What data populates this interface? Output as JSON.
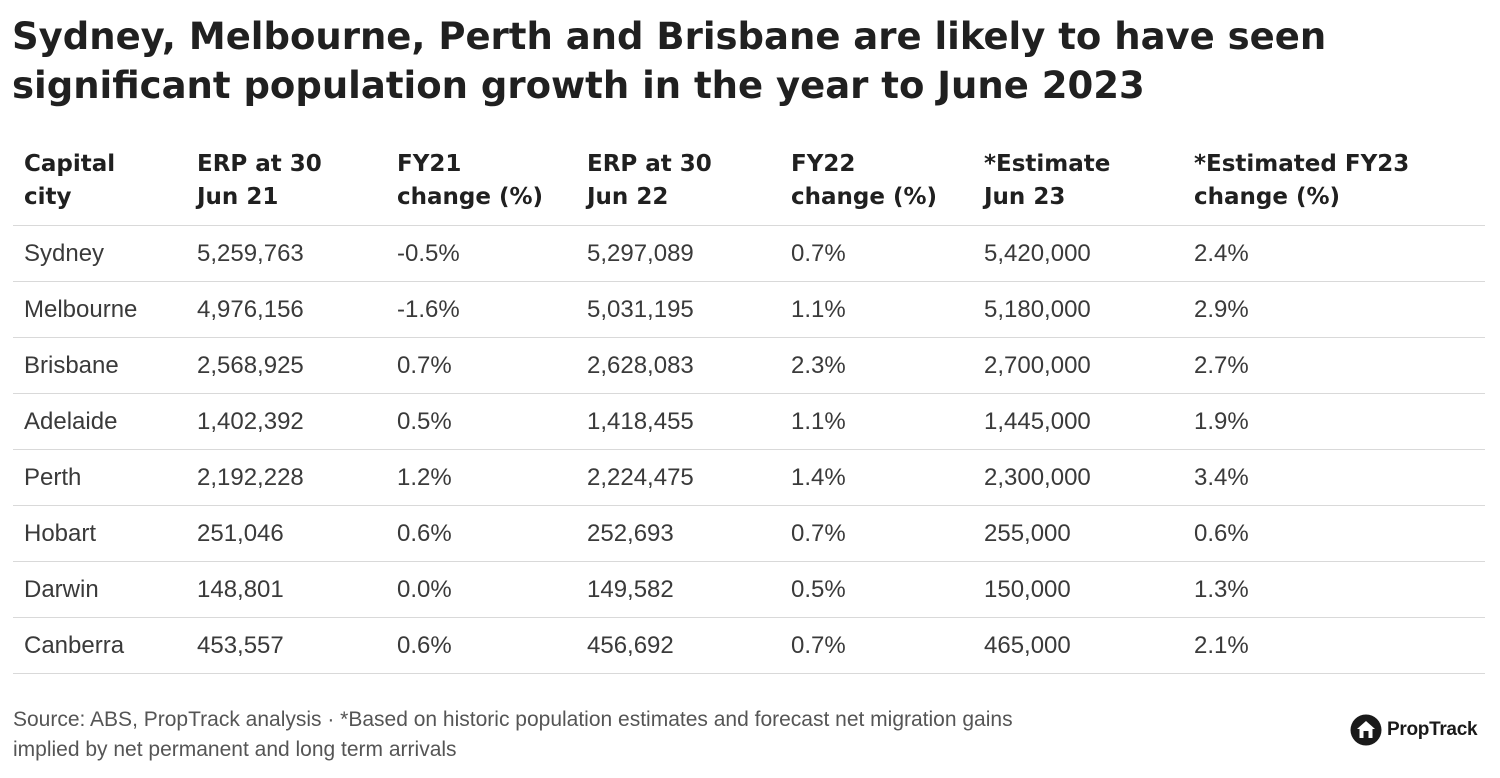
{
  "title_lines": [
    "Sydney, Melbourne, Perth and Brisbane are likely to have seen",
    "significant population growth in the year to June 2023"
  ],
  "chart_data": {
    "type": "table",
    "title": "Sydney, Melbourne, Perth and Brisbane are likely to have seen significant population growth in the year to June 2023",
    "columns": [
      [
        "Capital",
        "city"
      ],
      [
        "ERP at 30",
        "Jun 21"
      ],
      [
        "FY21",
        "change (%)"
      ],
      [
        "ERP at 30",
        "Jun 22"
      ],
      [
        "FY22",
        "change (%)"
      ],
      [
        "*Estimate",
        "Jun 23"
      ],
      [
        "*Estimated FY23",
        "change (%)"
      ]
    ],
    "rows": [
      [
        "Sydney",
        "5,259,763",
        "-0.5%",
        "5,297,089",
        "0.7%",
        "5,420,000",
        "2.4%"
      ],
      [
        "Melbourne",
        "4,976,156",
        "-1.6%",
        "5,031,195",
        "1.1%",
        "5,180,000",
        "2.9%"
      ],
      [
        "Brisbane",
        "2,568,925",
        "0.7%",
        "2,628,083",
        "2.3%",
        "2,700,000",
        "2.7%"
      ],
      [
        "Adelaide",
        "1,402,392",
        "0.5%",
        "1,418,455",
        "1.1%",
        "1,445,000",
        "1.9%"
      ],
      [
        "Perth",
        "2,192,228",
        "1.2%",
        "2,224,475",
        "1.4%",
        "2,300,000",
        "3.4%"
      ],
      [
        "Hobart",
        "251,046",
        "0.6%",
        "252,693",
        "0.7%",
        "255,000",
        "0.6%"
      ],
      [
        "Darwin",
        "148,801",
        "0.0%",
        "149,582",
        "0.5%",
        "150,000",
        "1.3%"
      ],
      [
        "Canberra",
        "453,557",
        "0.6%",
        "456,692",
        "0.7%",
        "465,000",
        "2.1%"
      ]
    ]
  },
  "source_lines": [
    "Source: ABS, PropTrack analysis · *Based on historic population estimates and forecast net migration gains",
    "implied by net permanent and long term arrivals"
  ],
  "brand": {
    "name": "PropTrack",
    "icon": "house-logo-icon"
  },
  "colors": {
    "text": "#202020",
    "cell_text": "#3a3a3a",
    "rule": "#d9d9d9",
    "source": "#555555"
  }
}
